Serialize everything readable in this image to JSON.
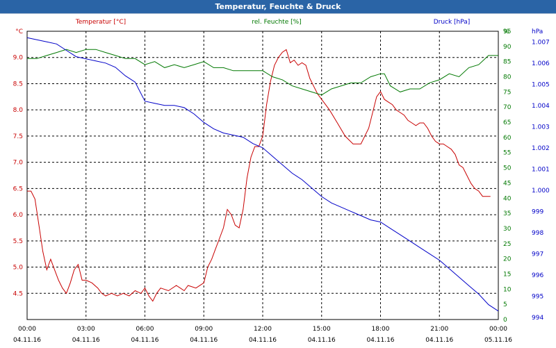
{
  "window": {
    "title": "Temperatur, Feuchte & Druck"
  },
  "colors": {
    "temperature": "#c80000",
    "humidity": "#007800",
    "pressure": "#0000c8",
    "title_bar": "#2a64a6",
    "grid": "#000000"
  },
  "chart_data": {
    "type": "line",
    "title": "Temperatur, Feuchte & Druck",
    "x_start_label": "04.11.16 00:00",
    "xlim": [
      0,
      24
    ],
    "xticks": [
      {
        "h": 0,
        "time": "00:00",
        "date": "04.11.16"
      },
      {
        "h": 3,
        "time": "03:00",
        "date": "04.11.16"
      },
      {
        "h": 6,
        "time": "06:00",
        "date": "04.11.16"
      },
      {
        "h": 9,
        "time": "09:00",
        "date": "04.11.16"
      },
      {
        "h": 12,
        "time": "12:00",
        "date": "04.11.16"
      },
      {
        "h": 15,
        "time": "15:00",
        "date": "04.11.16"
      },
      {
        "h": 18,
        "time": "18:00",
        "date": "04.11.16"
      },
      {
        "h": 21,
        "time": "21:00",
        "date": "04.11.16"
      },
      {
        "h": 24,
        "time": "00:00",
        "date": "05.11.16"
      }
    ],
    "axes": {
      "temperature": {
        "label": "Temperatur [°C]",
        "unit": "°C",
        "lim": [
          4.0,
          9.5
        ],
        "ticks": [
          "4.5",
          "5.0",
          "5.5",
          "6.0",
          "6.5",
          "7.0",
          "7.5",
          "8.0",
          "8.5",
          "9.0"
        ]
      },
      "humidity": {
        "label": "rel. Feuchte [%]",
        "unit": "%",
        "lim": [
          0,
          95
        ],
        "ticks": [
          "0",
          "5",
          "10",
          "15",
          "20",
          "25",
          "30",
          "35",
          "40",
          "45",
          "50",
          "55",
          "60",
          "65",
          "70",
          "75",
          "80",
          "85",
          "90",
          "95"
        ]
      },
      "pressure": {
        "label": "Druck [hPa]",
        "unit": "hPa",
        "lim": [
          993.9,
          1007.5
        ],
        "ticks": [
          "994",
          "995",
          "996",
          "997",
          "998",
          "999",
          "1.000",
          "1.001",
          "1.002",
          "1.003",
          "1.004",
          "1.005",
          "1.006",
          "1.007"
        ]
      }
    },
    "series": [
      {
        "name": "Temperatur [°C]",
        "axis": "temperature",
        "x": [
          0,
          0.2,
          0.4,
          0.6,
          0.8,
          1.0,
          1.2,
          1.4,
          1.6,
          1.8,
          2.0,
          2.2,
          2.4,
          2.6,
          2.8,
          3.0,
          3.3,
          3.6,
          3.8,
          4.0,
          4.3,
          4.6,
          4.9,
          5.2,
          5.5,
          5.8,
          6.0,
          6.2,
          6.4,
          6.6,
          6.8,
          7.2,
          7.6,
          7.8,
          8.0,
          8.2,
          8.6,
          9.0,
          9.2,
          9.4,
          9.6,
          9.8,
          10.0,
          10.2,
          10.4,
          10.6,
          10.8,
          11.0,
          11.2,
          11.4,
          11.6,
          11.8,
          12.0,
          12.2,
          12.4,
          12.6,
          12.8,
          13.0,
          13.2,
          13.4,
          13.6,
          13.8,
          14.0,
          14.2,
          14.4,
          14.6,
          14.8,
          15.0,
          15.4,
          15.8,
          16.2,
          16.6,
          17.0,
          17.4,
          17.8,
          18.0,
          18.2,
          18.4,
          18.6,
          18.8,
          19.0,
          19.2,
          19.4,
          19.6,
          19.8,
          20.0,
          20.2,
          20.4,
          20.6,
          20.8,
          21.0,
          21.2,
          21.4,
          21.6,
          21.8,
          22.0,
          22.2,
          22.4,
          22.6,
          22.8,
          23.0,
          23.2,
          23.4,
          23.6
        ],
        "values": [
          6.45,
          6.45,
          6.3,
          5.8,
          5.3,
          4.95,
          5.15,
          4.95,
          4.75,
          4.6,
          4.5,
          4.7,
          4.95,
          5.05,
          4.75,
          4.75,
          4.7,
          4.6,
          4.5,
          4.45,
          4.5,
          4.45,
          4.5,
          4.45,
          4.55,
          4.5,
          4.6,
          4.45,
          4.35,
          4.5,
          4.6,
          4.55,
          4.65,
          4.6,
          4.55,
          4.65,
          4.6,
          4.7,
          5.0,
          5.15,
          5.35,
          5.55,
          5.75,
          6.1,
          6.0,
          5.8,
          5.75,
          6.1,
          6.7,
          7.1,
          7.3,
          7.3,
          7.5,
          8.1,
          8.55,
          8.85,
          9.0,
          9.1,
          9.15,
          8.9,
          8.95,
          8.85,
          8.9,
          8.85,
          8.6,
          8.45,
          8.3,
          8.2,
          8.0,
          7.75,
          7.5,
          7.35,
          7.35,
          7.65,
          8.25,
          8.35,
          8.2,
          8.15,
          8.1,
          8.0,
          7.95,
          7.9,
          7.8,
          7.75,
          7.7,
          7.75,
          7.75,
          7.65,
          7.5,
          7.4,
          7.35,
          7.35,
          7.3,
          7.25,
          7.15,
          6.95,
          6.9,
          6.75,
          6.6,
          6.5,
          6.45,
          6.35,
          6.35,
          6.35
        ]
      },
      {
        "name": "rel. Feuchte [%]",
        "axis": "humidity",
        "x": [
          0,
          0.5,
          1.0,
          1.5,
          2.0,
          2.5,
          3.0,
          3.5,
          4.0,
          4.5,
          5.0,
          5.5,
          6.0,
          6.5,
          7.0,
          7.5,
          8.0,
          8.5,
          9.0,
          9.5,
          10.0,
          10.5,
          11.0,
          11.5,
          12.0,
          12.5,
          13.0,
          13.5,
          14.0,
          14.5,
          15.0,
          15.5,
          16.0,
          16.5,
          17.0,
          17.5,
          18.0,
          18.2,
          18.5,
          19.0,
          19.5,
          20.0,
          20.5,
          21.0,
          21.5,
          22.0,
          22.5,
          23.0,
          23.5,
          24.0
        ],
        "values": [
          86,
          86,
          87,
          88,
          89,
          88,
          89,
          89,
          88,
          87,
          86,
          86,
          84,
          85,
          83,
          84,
          83,
          84,
          85,
          83,
          83,
          82,
          82,
          82,
          82,
          80,
          79,
          77,
          76,
          75,
          74,
          76,
          77,
          78,
          78,
          80,
          81,
          81,
          77,
          75,
          76,
          76,
          78,
          79,
          81,
          80,
          83,
          84,
          87,
          87
        ]
      },
      {
        "name": "Druck [hPa]",
        "axis": "pressure",
        "x": [
          0,
          0.5,
          1.0,
          1.5,
          2.0,
          2.5,
          3.0,
          3.5,
          4.0,
          4.5,
          5.0,
          5.5,
          6.0,
          6.5,
          7.0,
          7.5,
          8.0,
          8.5,
          9.0,
          9.5,
          10.0,
          10.5,
          11.0,
          11.5,
          12.0,
          12.5,
          13.0,
          13.5,
          14.0,
          14.5,
          15.0,
          15.5,
          16.0,
          16.5,
          17.0,
          17.5,
          18.0,
          18.5,
          19.0,
          19.5,
          20.0,
          20.5,
          21.0,
          21.5,
          22.0,
          22.5,
          23.0,
          23.5,
          24.0
        ],
        "values": [
          1007.2,
          1007.1,
          1007.0,
          1006.9,
          1006.6,
          1006.3,
          1006.2,
          1006.1,
          1006.0,
          1005.8,
          1005.4,
          1005.1,
          1004.2,
          1004.1,
          1004.0,
          1004.0,
          1003.9,
          1003.6,
          1003.2,
          1002.9,
          1002.7,
          1002.6,
          1002.5,
          1002.2,
          1002.0,
          1001.6,
          1001.2,
          1000.8,
          1000.5,
          1000.1,
          999.7,
          999.4,
          999.2,
          999.0,
          998.8,
          998.6,
          998.5,
          998.2,
          997.9,
          997.6,
          997.3,
          997.0,
          996.7,
          996.3,
          995.9,
          995.5,
          995.1,
          994.6,
          994.3
        ]
      }
    ]
  }
}
